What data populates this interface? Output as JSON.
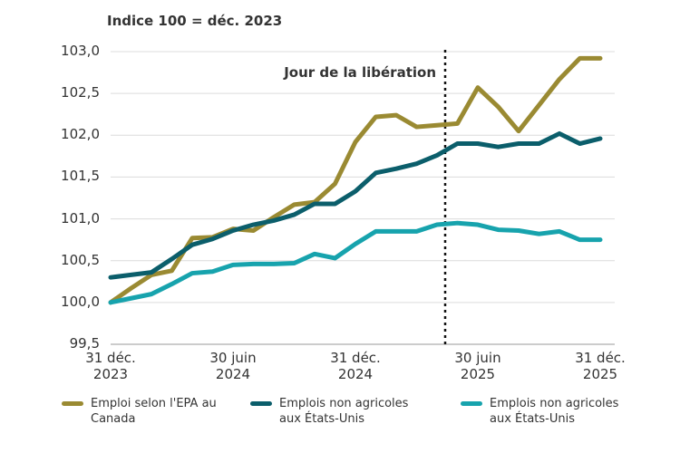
{
  "chart_data": {
    "type": "line",
    "subtitle": "Indice 100 = déc. 2023",
    "annotation": {
      "text": "Jour de la libération",
      "x": 16.4
    },
    "categories": [
      "31 déc. 2023",
      null,
      null,
      null,
      null,
      null,
      "30 juin 2024",
      null,
      null,
      null,
      null,
      null,
      "31 déc. 2024",
      null,
      null,
      null,
      null,
      null,
      "30 juin 2025",
      null,
      null,
      null,
      null,
      null,
      "31 déc. 2025"
    ],
    "ylim": [
      99.5,
      103.0
    ],
    "yticks": [
      {
        "value": 99.5,
        "label": "99,5"
      },
      {
        "value": 100.0,
        "label": "100,0"
      },
      {
        "value": 100.5,
        "label": "100,5"
      },
      {
        "value": 101.0,
        "label": "101,0"
      },
      {
        "value": 101.5,
        "label": "101,5"
      },
      {
        "value": 102.0,
        "label": "102,0"
      },
      {
        "value": 102.5,
        "label": "102,5"
      },
      {
        "value": 103.0,
        "label": "103,0"
      }
    ],
    "grid": true,
    "legend": "bottom",
    "series": [
      {
        "name": "Emploi selon l'EPA au Canada",
        "color": "#9a8a32",
        "values": [
          100.0,
          100.17,
          100.33,
          100.38,
          100.77,
          100.78,
          100.88,
          100.86,
          101.02,
          101.17,
          101.2,
          101.42,
          101.92,
          102.22,
          102.24,
          102.1,
          102.12,
          102.14,
          102.57,
          102.34,
          102.05,
          102.36,
          102.67,
          102.92,
          102.92
        ]
      },
      {
        "name": "Emplois non agricoles aux États-Unis",
        "color": "#0b5e6b",
        "values": [
          100.3,
          100.33,
          100.36,
          100.52,
          100.69,
          100.76,
          100.86,
          100.93,
          100.98,
          101.05,
          101.18,
          101.18,
          101.33,
          101.55,
          101.6,
          101.66,
          101.76,
          101.9,
          101.9,
          101.86,
          101.9,
          101.9,
          102.02,
          101.9,
          101.96
        ]
      },
      {
        "name": "Emplois non agricoles aux États-Unis",
        "color": "#17a3ad",
        "values": [
          100.0,
          100.05,
          100.1,
          100.22,
          100.35,
          100.37,
          100.45,
          100.46,
          100.46,
          100.47,
          100.58,
          100.53,
          100.7,
          100.85,
          100.85,
          100.85,
          100.93,
          100.95,
          100.93,
          100.87,
          100.86,
          100.82,
          100.85,
          100.75,
          100.75
        ]
      }
    ]
  }
}
